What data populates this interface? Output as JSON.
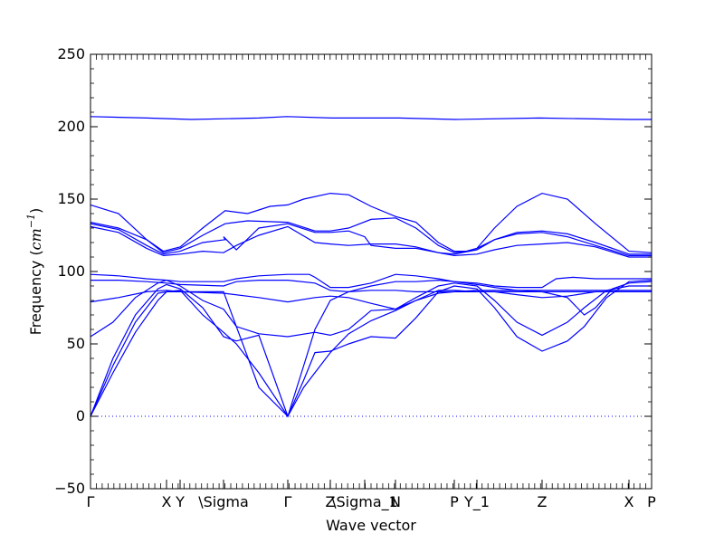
{
  "chart_data": {
    "type": "line",
    "title": "",
    "xlabel": "Wave vector",
    "ylabel": "Frequency (cm⁻¹)",
    "ylabel_html": {
      "prefix": "Frequency (",
      "unit": "cm",
      "exp": "−1",
      "suffix": ")"
    },
    "ylim": [
      -50,
      250
    ],
    "yticks": [
      -50,
      0,
      50,
      100,
      150,
      200,
      250
    ],
    "grid": false,
    "line_color": "#0000ff",
    "zero_line_color": "#0000ff",
    "high_symmetry_points": [
      {
        "label": "Γ",
        "x": 0.0
      },
      {
        "label": "X",
        "x": 0.1355
      },
      {
        "label": "Y",
        "x": 0.1597
      },
      {
        "label": "\\Sigma",
        "x": 0.2371
      },
      {
        "label": "Γ",
        "x": 0.3516
      },
      {
        "label": "Z",
        "x": 0.4274
      },
      {
        "label": "\\Sigma_1",
        "x": 0.4887
      },
      {
        "label": "N",
        "x": 0.5435
      },
      {
        "label": "P",
        "x": 0.6484
      },
      {
        "label": "Y_1",
        "x": 0.6887
      },
      {
        "label": "Z",
        "x": 0.8048
      },
      {
        "label": "X",
        "x": 0.9597
      },
      {
        "label": "P",
        "x": 1.0
      }
    ],
    "series": [
      {
        "values": [
          [
            0,
            207
          ],
          [
            0.1,
            206
          ],
          [
            0.18,
            205
          ],
          [
            0.3,
            206
          ],
          [
            0.35,
            207
          ],
          [
            0.43,
            206
          ],
          [
            0.55,
            206
          ],
          [
            0.65,
            205
          ],
          [
            0.8,
            206
          ],
          [
            0.96,
            205
          ],
          [
            1.0,
            205
          ]
        ]
      },
      {
        "values": [
          [
            0,
            146
          ],
          [
            0.05,
            140
          ],
          [
            0.1,
            122
          ],
          [
            0.13,
            114
          ],
          [
            0.16,
            117
          ],
          [
            0.2,
            130
          ],
          [
            0.24,
            142
          ],
          [
            0.28,
            140
          ],
          [
            0.32,
            145
          ],
          [
            0.3516,
            146
          ],
          [
            0.38,
            150
          ],
          [
            0.4274,
            154
          ],
          [
            0.46,
            153
          ],
          [
            0.5,
            145
          ],
          [
            0.5435,
            138
          ],
          [
            0.58,
            134
          ],
          [
            0.62,
            120
          ],
          [
            0.6484,
            114
          ],
          [
            0.67,
            114
          ],
          [
            0.6887,
            116
          ],
          [
            0.72,
            130
          ],
          [
            0.76,
            145
          ],
          [
            0.8048,
            154
          ],
          [
            0.85,
            150
          ],
          [
            0.9,
            133
          ],
          [
            0.9597,
            114
          ],
          [
            1.0,
            113
          ]
        ]
      },
      {
        "values": [
          [
            0,
            134
          ],
          [
            0.05,
            130
          ],
          [
            0.1,
            122
          ],
          [
            0.13,
            113
          ],
          [
            0.16,
            116
          ],
          [
            0.2,
            125
          ],
          [
            0.24,
            133
          ],
          [
            0.28,
            135
          ],
          [
            0.3516,
            134
          ],
          [
            0.4,
            128
          ],
          [
            0.4274,
            128
          ],
          [
            0.46,
            130
          ],
          [
            0.5,
            136
          ],
          [
            0.5435,
            137
          ],
          [
            0.58,
            130
          ],
          [
            0.62,
            118
          ],
          [
            0.6484,
            113
          ],
          [
            0.67,
            114
          ],
          [
            0.6887,
            116
          ],
          [
            0.72,
            122
          ],
          [
            0.76,
            127
          ],
          [
            0.8048,
            128
          ],
          [
            0.85,
            126
          ],
          [
            0.9,
            120
          ],
          [
            0.9597,
            112
          ],
          [
            1.0,
            112
          ]
        ]
      },
      {
        "values": [
          [
            0,
            133
          ],
          [
            0.05,
            129
          ],
          [
            0.1,
            118
          ],
          [
            0.13,
            112
          ],
          [
            0.16,
            114
          ],
          [
            0.2,
            120
          ],
          [
            0.24,
            122
          ],
          [
            0.2371,
            124
          ],
          [
            0.26,
            115
          ],
          [
            0.3,
            130
          ],
          [
            0.3516,
            133
          ],
          [
            0.4,
            127
          ],
          [
            0.4274,
            127
          ],
          [
            0.46,
            128
          ],
          [
            0.4887,
            124
          ],
          [
            0.5,
            118
          ],
          [
            0.5435,
            116
          ],
          [
            0.58,
            116
          ],
          [
            0.62,
            113
          ],
          [
            0.6484,
            112
          ],
          [
            0.6887,
            115
          ],
          [
            0.72,
            122
          ],
          [
            0.76,
            126
          ],
          [
            0.8048,
            127
          ],
          [
            0.85,
            124
          ],
          [
            0.9,
            118
          ],
          [
            0.9597,
            111
          ],
          [
            1.0,
            111
          ]
        ]
      },
      {
        "values": [
          [
            0,
            131
          ],
          [
            0.05,
            127
          ],
          [
            0.1,
            116
          ],
          [
            0.13,
            111
          ],
          [
            0.16,
            112
          ],
          [
            0.2,
            114
          ],
          [
            0.2371,
            113
          ],
          [
            0.26,
            118
          ],
          [
            0.3,
            125
          ],
          [
            0.3516,
            131
          ],
          [
            0.4,
            120
          ],
          [
            0.4274,
            119
          ],
          [
            0.46,
            118
          ],
          [
            0.5,
            119
          ],
          [
            0.5435,
            119
          ],
          [
            0.58,
            117
          ],
          [
            0.62,
            113
          ],
          [
            0.6484,
            111
          ],
          [
            0.6887,
            112
          ],
          [
            0.72,
            115
          ],
          [
            0.76,
            118
          ],
          [
            0.8048,
            119
          ],
          [
            0.85,
            120
          ],
          [
            0.9,
            117
          ],
          [
            0.9597,
            110
          ],
          [
            1.0,
            110
          ]
        ]
      },
      {
        "values": [
          [
            0,
            98
          ],
          [
            0.05,
            97
          ],
          [
            0.1,
            95
          ],
          [
            0.1355,
            94
          ],
          [
            0.16,
            93
          ],
          [
            0.2371,
            93
          ],
          [
            0.26,
            95
          ],
          [
            0.3,
            97
          ],
          [
            0.3516,
            98
          ],
          [
            0.39,
            98
          ],
          [
            0.4,
            96
          ],
          [
            0.4274,
            89
          ],
          [
            0.46,
            89
          ],
          [
            0.5,
            92
          ],
          [
            0.5435,
            98
          ],
          [
            0.58,
            97
          ],
          [
            0.62,
            95
          ],
          [
            0.6484,
            93
          ],
          [
            0.6887,
            92
          ],
          [
            0.72,
            90
          ],
          [
            0.76,
            89
          ],
          [
            0.8048,
            89
          ],
          [
            0.83,
            95
          ],
          [
            0.86,
            96
          ],
          [
            0.9,
            95
          ],
          [
            0.9597,
            95
          ],
          [
            1.0,
            95
          ]
        ]
      },
      {
        "values": [
          [
            0,
            94
          ],
          [
            0.05,
            94
          ],
          [
            0.1,
            93
          ],
          [
            0.1355,
            92
          ],
          [
            0.16,
            91
          ],
          [
            0.2371,
            90
          ],
          [
            0.26,
            93
          ],
          [
            0.3,
            94
          ],
          [
            0.3516,
            94
          ],
          [
            0.4,
            92
          ],
          [
            0.4274,
            87
          ],
          [
            0.46,
            86
          ],
          [
            0.5,
            90
          ],
          [
            0.5435,
            93
          ],
          [
            0.58,
            93
          ],
          [
            0.62,
            94
          ],
          [
            0.6484,
            93
          ],
          [
            0.6887,
            91
          ],
          [
            0.72,
            89
          ],
          [
            0.76,
            87
          ],
          [
            0.8048,
            86
          ],
          [
            0.85,
            82
          ],
          [
            0.88,
            70
          ],
          [
            0.9,
            75
          ],
          [
            0.93,
            88
          ],
          [
            0.9597,
            92
          ],
          [
            1.0,
            93
          ]
        ]
      },
      {
        "values": [
          [
            0,
            79
          ],
          [
            0.05,
            82
          ],
          [
            0.1,
            86
          ],
          [
            0.1355,
            87
          ],
          [
            0.16,
            86
          ],
          [
            0.2371,
            85
          ],
          [
            0.3,
            82
          ],
          [
            0.3516,
            79
          ],
          [
            0.4,
            82
          ],
          [
            0.4274,
            83
          ],
          [
            0.46,
            82
          ],
          [
            0.5,
            78
          ],
          [
            0.5435,
            74
          ],
          [
            0.58,
            80
          ],
          [
            0.62,
            87
          ],
          [
            0.6484,
            87
          ],
          [
            0.6887,
            86
          ],
          [
            0.72,
            86
          ],
          [
            0.76,
            84
          ],
          [
            0.8048,
            82
          ],
          [
            0.85,
            83
          ],
          [
            0.9,
            86
          ],
          [
            0.9597,
            86
          ],
          [
            1.0,
            86
          ]
        ]
      },
      {
        "values": [
          [
            0,
            55
          ],
          [
            0.04,
            65
          ],
          [
            0.08,
            82
          ],
          [
            0.12,
            92
          ],
          [
            0.1355,
            94
          ],
          [
            0.16,
            90
          ],
          [
            0.2,
            80
          ],
          [
            0.2371,
            74
          ],
          [
            0.26,
            62
          ],
          [
            0.3,
            57
          ],
          [
            0.3516,
            55
          ],
          [
            0.4,
            58
          ],
          [
            0.4274,
            56
          ],
          [
            0.46,
            60
          ],
          [
            0.5,
            73
          ],
          [
            0.5435,
            74
          ],
          [
            0.58,
            82
          ],
          [
            0.62,
            90
          ],
          [
            0.6484,
            92
          ],
          [
            0.6887,
            90
          ],
          [
            0.72,
            80
          ],
          [
            0.76,
            65
          ],
          [
            0.8048,
            56
          ],
          [
            0.85,
            65
          ],
          [
            0.88,
            75
          ],
          [
            0.92,
            87
          ],
          [
            0.9597,
            90
          ],
          [
            1.0,
            90
          ]
        ]
      },
      {
        "values": [
          [
            0,
            0
          ],
          [
            0.04,
            40
          ],
          [
            0.08,
            70
          ],
          [
            0.12,
            88
          ],
          [
            0.1355,
            91
          ],
          [
            0.16,
            88
          ],
          [
            0.2,
            75
          ],
          [
            0.2371,
            55
          ],
          [
            0.26,
            52
          ],
          [
            0.3,
            56
          ],
          [
            0.3516,
            0
          ],
          [
            0.38,
            25
          ],
          [
            0.4,
            44
          ],
          [
            0.4274,
            45
          ],
          [
            0.46,
            50
          ],
          [
            0.5,
            55
          ],
          [
            0.5435,
            54
          ],
          [
            0.58,
            68
          ],
          [
            0.62,
            86
          ],
          [
            0.6484,
            90
          ],
          [
            0.6887,
            88
          ],
          [
            0.72,
            75
          ],
          [
            0.76,
            55
          ],
          [
            0.8048,
            45
          ],
          [
            0.85,
            52
          ],
          [
            0.88,
            62
          ],
          [
            0.92,
            82
          ],
          [
            0.9597,
            93
          ],
          [
            1.0,
            94
          ]
        ]
      },
      {
        "values": [
          [
            0,
            0
          ],
          [
            0.04,
            35
          ],
          [
            0.08,
            65
          ],
          [
            0.12,
            85
          ],
          [
            0.1355,
            86
          ],
          [
            0.16,
            87
          ],
          [
            0.2,
            70
          ],
          [
            0.2371,
            58
          ],
          [
            0.26,
            50
          ],
          [
            0.3,
            30
          ],
          [
            0.3516,
            0
          ],
          [
            0.38,
            35
          ],
          [
            0.4,
            60
          ],
          [
            0.4274,
            80
          ],
          [
            0.46,
            86
          ],
          [
            0.5,
            87
          ],
          [
            0.5435,
            87
          ],
          [
            0.58,
            86
          ],
          [
            0.62,
            86
          ],
          [
            0.6484,
            86
          ],
          [
            0.6887,
            87
          ],
          [
            0.72,
            87
          ],
          [
            0.76,
            87
          ],
          [
            0.8048,
            87
          ],
          [
            0.85,
            87
          ],
          [
            0.9,
            87
          ],
          [
            0.9597,
            87
          ],
          [
            1.0,
            87
          ]
        ]
      },
      {
        "values": [
          [
            0,
            0
          ],
          [
            0.04,
            30
          ],
          [
            0.08,
            58
          ],
          [
            0.12,
            80
          ],
          [
            0.1355,
            86
          ],
          [
            0.16,
            86
          ],
          [
            0.2371,
            86
          ],
          [
            0.3,
            20
          ],
          [
            0.3516,
            0
          ],
          [
            0.38,
            20
          ],
          [
            0.4274,
            44
          ],
          [
            0.46,
            57
          ],
          [
            0.5,
            66
          ],
          [
            0.5435,
            73
          ],
          [
            0.58,
            80
          ],
          [
            0.62,
            85
          ],
          [
            0.6484,
            86
          ],
          [
            0.6887,
            86
          ],
          [
            0.72,
            86
          ],
          [
            0.76,
            86
          ],
          [
            0.8048,
            86
          ],
          [
            0.9,
            86
          ],
          [
            0.9597,
            86
          ],
          [
            1.0,
            86
          ]
        ]
      }
    ]
  }
}
